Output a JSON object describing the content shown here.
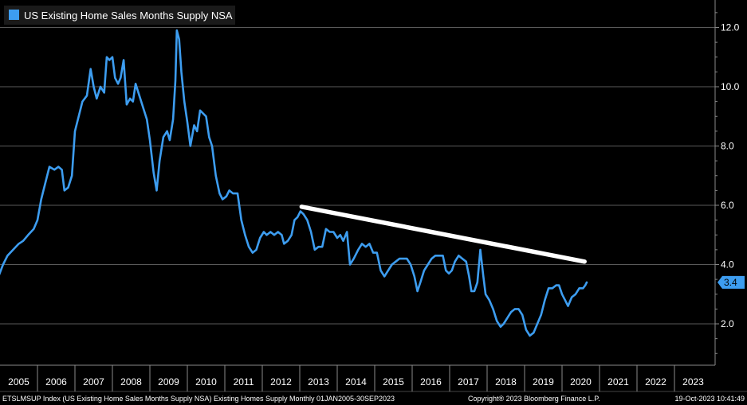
{
  "footer": {
    "left": "ETSLMSUP Index (US Existing Home Sales Months Supply NSA) Existing Homes Supply  Monthly 01JAN2005-30SEP2023",
    "center": "Copyright® 2023 Bloomberg Finance L.P.",
    "right": "19-Oct-2023 10:41:49"
  },
  "colors": {
    "background": "#000000",
    "series": "#3d9df0",
    "trendline": "#ffffff",
    "grid": "#5a5a5a",
    "axis": "#8a8a8a"
  },
  "chart_data": {
    "type": "line",
    "title": "",
    "legend": [
      {
        "name": "US Existing Home Sales Months Supply NSA",
        "color": "#3d9df0"
      }
    ],
    "legend_position": "top-left",
    "x_start": 2005.0,
    "x_end": 2023.75,
    "x_tick_labels": [
      "2005",
      "2006",
      "2007",
      "2008",
      "2009",
      "2010",
      "2011",
      "2012",
      "2013",
      "2014",
      "2015",
      "2016",
      "2017",
      "2018",
      "2019",
      "2020",
      "2021",
      "2022",
      "2023"
    ],
    "y_axis_side": "right",
    "ylim": [
      1.0,
      12.7
    ],
    "y_ticks": [
      2.0,
      4.0,
      6.0,
      8.0,
      10.0,
      12.0
    ],
    "y_tick_labels": [
      "2.0",
      "4.0",
      "6.0",
      "8.0",
      "10.0",
      "12.0"
    ],
    "grid": true,
    "last_value_label": "3.4",
    "series": [
      {
        "name": "US Existing Home Sales Months Supply NSA",
        "points": [
          [
            2004.96,
            3.6
          ],
          [
            2005.08,
            4.0
          ],
          [
            2005.2,
            4.3
          ],
          [
            2005.35,
            4.5
          ],
          [
            2005.5,
            4.7
          ],
          [
            2005.62,
            4.8
          ],
          [
            2005.75,
            5.0
          ],
          [
            2005.9,
            5.2
          ],
          [
            2006.0,
            5.5
          ],
          [
            2006.1,
            6.2
          ],
          [
            2006.22,
            6.8
          ],
          [
            2006.32,
            7.3
          ],
          [
            2006.45,
            7.2
          ],
          [
            2006.56,
            7.3
          ],
          [
            2006.65,
            7.2
          ],
          [
            2006.72,
            6.5
          ],
          [
            2006.82,
            6.6
          ],
          [
            2006.92,
            7.0
          ],
          [
            2007.0,
            8.5
          ],
          [
            2007.1,
            9.0
          ],
          [
            2007.2,
            9.5
          ],
          [
            2007.32,
            9.7
          ],
          [
            2007.42,
            10.6
          ],
          [
            2007.5,
            10.0
          ],
          [
            2007.58,
            9.6
          ],
          [
            2007.68,
            10.0
          ],
          [
            2007.78,
            9.8
          ],
          [
            2007.85,
            11.0
          ],
          [
            2007.92,
            10.9
          ],
          [
            2008.0,
            11.0
          ],
          [
            2008.07,
            10.3
          ],
          [
            2008.15,
            10.1
          ],
          [
            2008.22,
            10.3
          ],
          [
            2008.3,
            10.9
          ],
          [
            2008.38,
            9.4
          ],
          [
            2008.47,
            9.6
          ],
          [
            2008.55,
            9.5
          ],
          [
            2008.62,
            10.1
          ],
          [
            2008.72,
            9.7
          ],
          [
            2008.82,
            9.3
          ],
          [
            2008.92,
            8.9
          ],
          [
            2009.0,
            8.2
          ],
          [
            2009.1,
            7.1
          ],
          [
            2009.18,
            6.5
          ],
          [
            2009.26,
            7.5
          ],
          [
            2009.36,
            8.3
          ],
          [
            2009.46,
            8.5
          ],
          [
            2009.53,
            8.2
          ],
          [
            2009.62,
            8.9
          ],
          [
            2009.68,
            10.2
          ],
          [
            2009.72,
            11.9
          ],
          [
            2009.78,
            11.6
          ],
          [
            2009.84,
            10.5
          ],
          [
            2009.92,
            9.5
          ],
          [
            2010.0,
            8.8
          ],
          [
            2010.08,
            8.0
          ],
          [
            2010.18,
            8.7
          ],
          [
            2010.26,
            8.5
          ],
          [
            2010.34,
            9.2
          ],
          [
            2010.42,
            9.1
          ],
          [
            2010.5,
            9.0
          ],
          [
            2010.58,
            8.3
          ],
          [
            2010.66,
            8.0
          ],
          [
            2010.76,
            7.0
          ],
          [
            2010.86,
            6.4
          ],
          [
            2010.94,
            6.2
          ],
          [
            2011.04,
            6.3
          ],
          [
            2011.12,
            6.5
          ],
          [
            2011.22,
            6.4
          ],
          [
            2011.34,
            6.4
          ],
          [
            2011.44,
            5.5
          ],
          [
            2011.54,
            5.0
          ],
          [
            2011.64,
            4.6
          ],
          [
            2011.74,
            4.4
          ],
          [
            2011.84,
            4.5
          ],
          [
            2011.94,
            4.9
          ],
          [
            2012.04,
            5.1
          ],
          [
            2012.12,
            5.0
          ],
          [
            2012.22,
            5.1
          ],
          [
            2012.32,
            5.0
          ],
          [
            2012.42,
            5.1
          ],
          [
            2012.52,
            5.0
          ],
          [
            2012.58,
            4.7
          ],
          [
            2012.68,
            4.8
          ],
          [
            2012.78,
            5.0
          ],
          [
            2012.86,
            5.5
          ],
          [
            2012.94,
            5.6
          ],
          [
            2013.02,
            5.8
          ],
          [
            2013.1,
            5.7
          ],
          [
            2013.2,
            5.5
          ],
          [
            2013.3,
            5.1
          ],
          [
            2013.4,
            4.5
          ],
          [
            2013.5,
            4.6
          ],
          [
            2013.6,
            4.6
          ],
          [
            2013.7,
            5.2
          ],
          [
            2013.8,
            5.1
          ],
          [
            2013.9,
            5.1
          ],
          [
            2014.0,
            4.9
          ],
          [
            2014.08,
            5.0
          ],
          [
            2014.16,
            4.8
          ],
          [
            2014.26,
            5.1
          ],
          [
            2014.34,
            4.0
          ],
          [
            2014.44,
            4.2
          ],
          [
            2014.56,
            4.5
          ],
          [
            2014.66,
            4.7
          ],
          [
            2014.76,
            4.6
          ],
          [
            2014.86,
            4.7
          ],
          [
            2014.96,
            4.4
          ],
          [
            2015.06,
            4.4
          ],
          [
            2015.16,
            3.8
          ],
          [
            2015.26,
            3.6
          ],
          [
            2015.36,
            3.8
          ],
          [
            2015.46,
            4.0
          ],
          [
            2015.56,
            4.1
          ],
          [
            2015.66,
            4.2
          ],
          [
            2015.76,
            4.2
          ],
          [
            2015.86,
            4.2
          ],
          [
            2015.96,
            4.0
          ],
          [
            2016.06,
            3.6
          ],
          [
            2016.14,
            3.1
          ],
          [
            2016.22,
            3.4
          ],
          [
            2016.32,
            3.8
          ],
          [
            2016.42,
            4.0
          ],
          [
            2016.52,
            4.2
          ],
          [
            2016.62,
            4.3
          ],
          [
            2016.72,
            4.3
          ],
          [
            2016.82,
            4.3
          ],
          [
            2016.9,
            3.8
          ],
          [
            2016.98,
            3.7
          ],
          [
            2017.06,
            3.8
          ],
          [
            2017.14,
            4.1
          ],
          [
            2017.24,
            4.3
          ],
          [
            2017.34,
            4.2
          ],
          [
            2017.44,
            4.1
          ],
          [
            2017.52,
            3.6
          ],
          [
            2017.58,
            3.1
          ],
          [
            2017.66,
            3.1
          ],
          [
            2017.74,
            3.4
          ],
          [
            2017.82,
            4.5
          ],
          [
            2017.9,
            3.6
          ],
          [
            2017.96,
            3.0
          ],
          [
            2018.06,
            2.8
          ],
          [
            2018.16,
            2.5
          ],
          [
            2018.26,
            2.1
          ],
          [
            2018.36,
            1.9
          ],
          [
            2018.44,
            2.0
          ],
          [
            2018.54,
            2.2
          ],
          [
            2018.64,
            2.4
          ],
          [
            2018.74,
            2.5
          ],
          [
            2018.84,
            2.5
          ],
          [
            2018.94,
            2.3
          ],
          [
            2019.04,
            1.8
          ],
          [
            2019.14,
            1.6
          ],
          [
            2019.24,
            1.7
          ],
          [
            2019.34,
            2.0
          ],
          [
            2019.44,
            2.3
          ],
          [
            2019.54,
            2.8
          ],
          [
            2019.64,
            3.2
          ],
          [
            2019.74,
            3.2
          ],
          [
            2019.84,
            3.3
          ],
          [
            2019.92,
            3.3
          ],
          [
            2020.0,
            3.0
          ],
          [
            2020.08,
            2.8
          ],
          [
            2020.16,
            2.6
          ],
          [
            2020.26,
            2.9
          ],
          [
            2020.36,
            3.0
          ],
          [
            2020.46,
            3.2
          ],
          [
            2020.56,
            3.2
          ],
          [
            2020.62,
            3.3
          ],
          [
            2020.66,
            3.4
          ]
        ]
      }
    ],
    "trendline": {
      "from": [
        2013.05,
        5.95
      ],
      "to": [
        2020.6,
        4.1
      ]
    }
  }
}
